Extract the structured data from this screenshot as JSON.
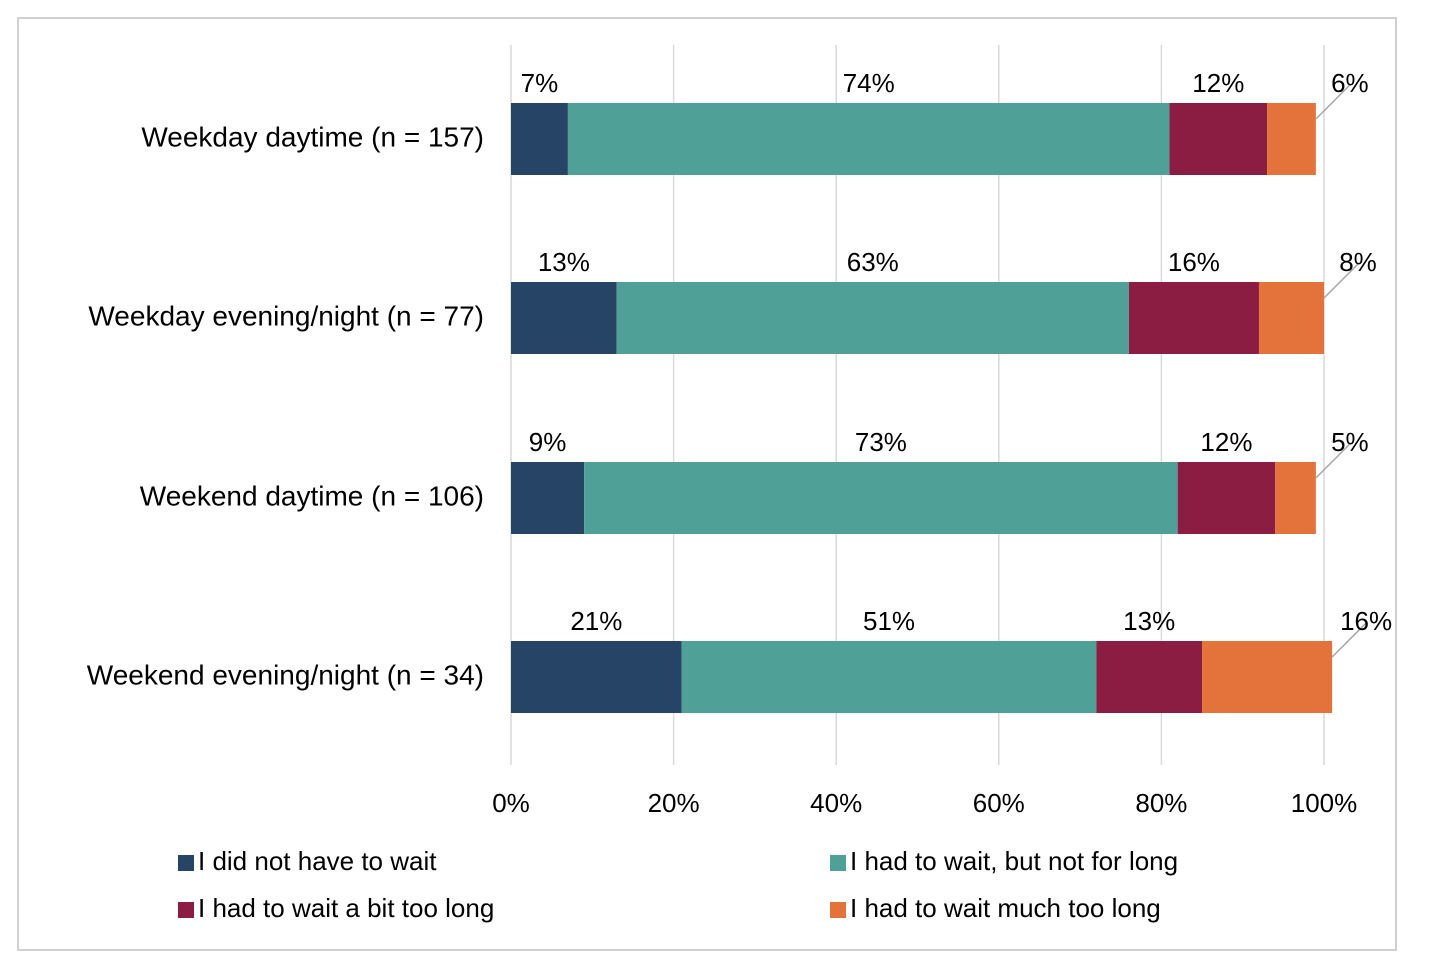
{
  "chart_data": {
    "type": "stacked-bar",
    "categories": [
      "Weekday daytime (n = 157)",
      "Weekday evening/night (n = 77)",
      "Weekend daytime (n = 106)",
      "Weekend evening/night (n = 34)"
    ],
    "series": [
      {
        "name": "I did not have to wait",
        "color": "#264466",
        "values": [
          7,
          13,
          9,
          21
        ],
        "value_labels": [
          "7%",
          "13%",
          "9%",
          "21%"
        ]
      },
      {
        "name": "I had to wait, but not for long",
        "color": "#4fa097",
        "values": [
          74,
          63,
          73,
          51
        ],
        "value_labels": [
          "74%",
          "63%",
          "73%",
          "51%"
        ]
      },
      {
        "name": "I had to wait a bit too long",
        "color": "#8b1c42",
        "values": [
          12,
          16,
          12,
          13
        ],
        "value_labels": [
          "12%",
          "16%",
          "12%",
          "13%"
        ]
      },
      {
        "name": "I had to wait much too long",
        "color": "#e3733a",
        "values": [
          6,
          8,
          5,
          16
        ],
        "value_labels": [
          "6%",
          "8%",
          "5%",
          "16%"
        ]
      }
    ],
    "xlim": [
      0,
      100
    ],
    "xticks": [
      {
        "value": 0,
        "label": "0%"
      },
      {
        "value": 20,
        "label": "20%"
      },
      {
        "value": 40,
        "label": "40%"
      },
      {
        "value": 60,
        "label": "60%"
      },
      {
        "value": 80,
        "label": "80%"
      },
      {
        "value": 100,
        "label": "100%"
      }
    ],
    "grid": true
  }
}
